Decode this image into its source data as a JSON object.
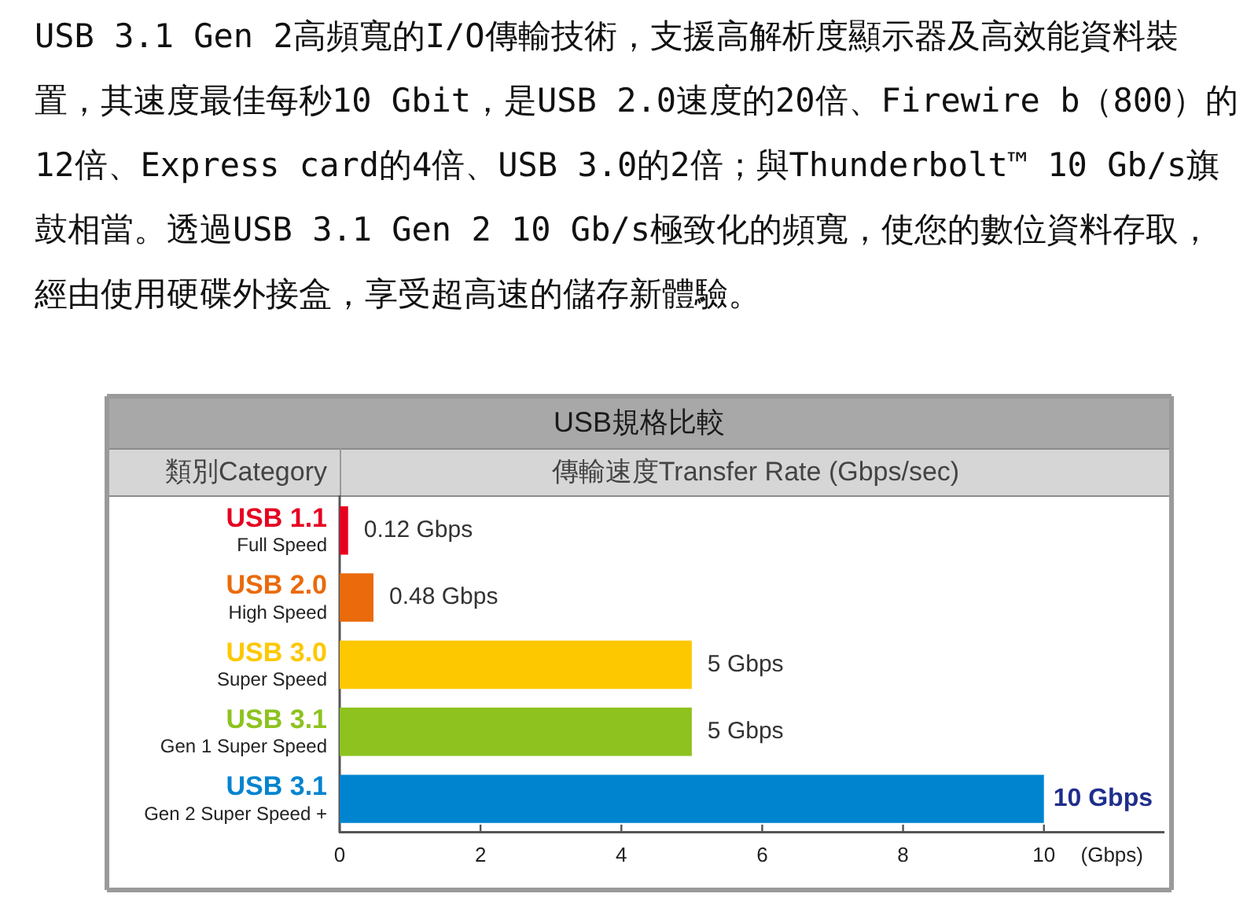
{
  "chart_data": {
    "type": "bar",
    "orientation": "horizontal",
    "title": "USB規格比較",
    "ylabel": "類別Category",
    "xlabel": "(Gbps)",
    "annotations": [
      "USB 3.1 Gen 2高頻寬的I/O傳輸技術，支援高解析度顯示器及高效能資料裝置，其速度最佳每秒10 Gbit，是USB 2.0速度的20倍、Firewire b（800）的12倍、Express card的4倍、USB 3.0的2倍；與Thunderbolt™ 10 Gb/s旗鼓相當。透過USB 3.1 Gen 2 10 Gb/s極致化的頻寬，使您的數位資料存取，經由使用硬碟外接盒，享受超高速的儲存新體驗。",
      "傳輸速度Transfer Rate (Gbps/sec)"
    ],
    "categories": [
      "USB 1.1\nFull Speed",
      "USB 2.0\nHigh Speed",
      "USB 3.0\nSuper Speed",
      "USB 3.1\nGen 1 Super Speed",
      "USB 3.1\nGen 2 Super Speed +"
    ],
    "values": [
      0.12,
      0.48,
      5,
      5,
      10
    ],
    "colors": [
      "#e60020",
      "#ea6a0c",
      "#fdc800",
      "#8dc21f",
      "#0084cf"
    ],
    "value_labels": [
      "0.12 Gbps",
      "0.48 Gbps",
      "5 Gbps",
      "5 Gbps",
      "10 Gbps"
    ],
    "xlim": [
      0,
      11.7
    ],
    "xticks": [
      0,
      2,
      4,
      6,
      8,
      10
    ]
  }
}
